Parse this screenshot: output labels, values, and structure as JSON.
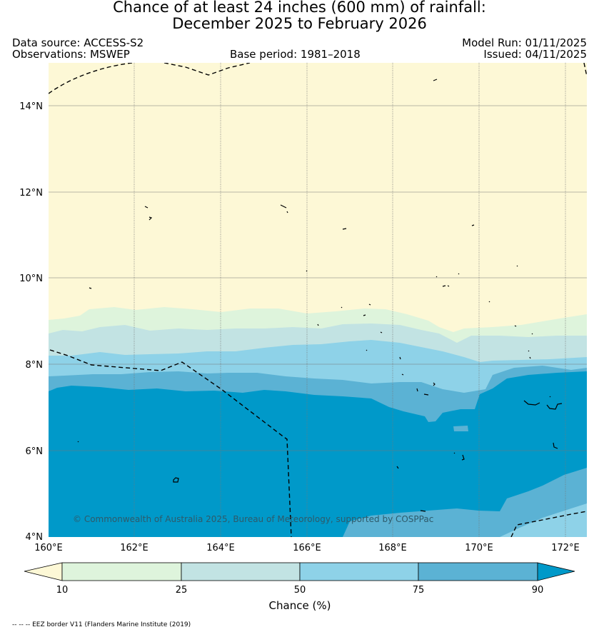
{
  "header": {
    "title_line1": "Chance of at least 24 inches (600  mm) of rainfall:",
    "title_line2": "December 2025 to February 2026",
    "data_source": "Data source: ACCESS-S2",
    "observations": "Observations: MSWEP",
    "base_period": "Base period: 1981–2018",
    "model_run": "Model Run: 01/11/2025",
    "issued": "Issued: 04/11/2025"
  },
  "map": {
    "lat_ticks": [
      "14°N",
      "12°N",
      "10°N",
      "8°N",
      "6°N",
      "4°N"
    ],
    "lon_ticks": [
      "160°E",
      "162°E",
      "164°E",
      "166°E",
      "168°E",
      "170°E",
      "172°E"
    ],
    "lat_range": [
      4,
      15
    ],
    "lon_range": [
      160,
      172.5
    ],
    "copyright": "© Commonwealth of Australia 2025, Bureau of Meteorology, supported by COSPPac",
    "band_colors": {
      "lt10": "#fdf8d6",
      "b10_25": "#def4dc",
      "b25_50": "#c2e3e3",
      "b50_75": "#8ed2e8",
      "b75_90": "#5bb2d4",
      "gt90": "#0099c9"
    }
  },
  "colorbar": {
    "labels": [
      "10",
      "25",
      "50",
      "75",
      "90"
    ],
    "title": "Chance (%)"
  },
  "footer": {
    "note": "-- -- -- EEZ border V11 (Flanders Marine Institute (2019)"
  }
}
